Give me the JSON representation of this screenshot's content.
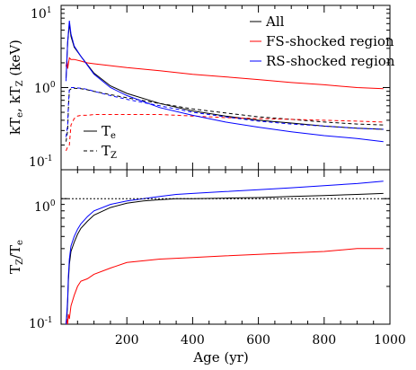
{
  "chart_data": [
    {
      "type": "line",
      "yscale": "log",
      "ylim": [
        0.1,
        10
      ],
      "xlim": [
        0,
        1000
      ],
      "ylabel": "kTe, kTZ (keV)",
      "legend_series": [
        {
          "key": "all",
          "name": "All",
          "color": "#000000"
        },
        {
          "key": "fs",
          "name": "FS-shocked region",
          "color": "#ff0000"
        },
        {
          "key": "rs",
          "name": "RS-shocked region",
          "color": "#0000ff"
        }
      ],
      "legend_styles": [
        {
          "key": "te",
          "name": "T",
          "sub": "e",
          "dash": "solid"
        },
        {
          "key": "tz",
          "name": "T",
          "sub": "Z",
          "dash": "dashed"
        }
      ],
      "series": [
        {
          "name": "All Te",
          "color": "#000000",
          "dash": "solid",
          "x": [
            15,
            20,
            25,
            30,
            40,
            60,
            100,
            150,
            200,
            300,
            400,
            500,
            600,
            700,
            800,
            900,
            980
          ],
          "y": [
            1.3,
            3.5,
            6.0,
            4.2,
            3.1,
            2.4,
            1.5,
            1.05,
            0.85,
            0.64,
            0.52,
            0.45,
            0.4,
            0.37,
            0.34,
            0.32,
            0.31
          ]
        },
        {
          "name": "All TZ",
          "color": "#000000",
          "dash": "dashed",
          "x": [
            15,
            20,
            22,
            25,
            30,
            40,
            60,
            80,
            100,
            150,
            200,
            300,
            400,
            500,
            600,
            700,
            800,
            900,
            980
          ],
          "y": [
            0.22,
            0.3,
            0.55,
            0.93,
            0.96,
            0.98,
            0.97,
            0.94,
            0.9,
            0.82,
            0.75,
            0.64,
            0.55,
            0.49,
            0.44,
            0.41,
            0.38,
            0.36,
            0.35
          ]
        },
        {
          "name": "FS Te",
          "color": "#ff0000",
          "dash": "solid",
          "x": [
            15,
            18,
            20,
            25,
            30,
            40,
            60,
            80,
            100,
            150,
            200,
            300,
            400,
            500,
            600,
            700,
            800,
            900,
            980
          ],
          "y": [
            1.8,
            2.1,
            1.7,
            2.3,
            2.2,
            2.2,
            2.1,
            2.0,
            1.95,
            1.85,
            1.75,
            1.6,
            1.45,
            1.35,
            1.25,
            1.15,
            1.08,
            1.0,
            0.97
          ]
        },
        {
          "name": "FS TZ",
          "color": "#ff0000",
          "dash": "dashed",
          "x": [
            15,
            20,
            25,
            30,
            40,
            50,
            60,
            80,
            100,
            150,
            200,
            300,
            400,
            500,
            600,
            700,
            800,
            900,
            980
          ],
          "y": [
            0.17,
            0.19,
            0.2,
            0.35,
            0.42,
            0.45,
            0.46,
            0.46,
            0.47,
            0.47,
            0.47,
            0.47,
            0.45,
            0.43,
            0.42,
            0.41,
            0.4,
            0.39,
            0.38
          ]
        },
        {
          "name": "RS Te",
          "color": "#0000ff",
          "dash": "solid",
          "x": [
            15,
            20,
            25,
            30,
            40,
            60,
            100,
            150,
            200,
            300,
            400,
            500,
            600,
            700,
            800,
            900,
            980
          ],
          "y": [
            1.2,
            3.6,
            6.5,
            4.5,
            3.2,
            2.4,
            1.45,
            1.0,
            0.8,
            0.57,
            0.46,
            0.38,
            0.33,
            0.29,
            0.26,
            0.24,
            0.22
          ]
        },
        {
          "name": "RS TZ",
          "color": "#0000ff",
          "dash": "dashed",
          "x": [
            15,
            20,
            22,
            25,
            30,
            40,
            60,
            80,
            100,
            150,
            200,
            300,
            400,
            500,
            600,
            700,
            800,
            900,
            980
          ],
          "y": [
            0.25,
            0.35,
            0.6,
            0.95,
            1.0,
            1.0,
            0.98,
            0.95,
            0.9,
            0.8,
            0.72,
            0.6,
            0.5,
            0.44,
            0.39,
            0.36,
            0.34,
            0.32,
            0.31
          ]
        }
      ]
    },
    {
      "type": "line",
      "yscale": "log",
      "ylim": [
        0.1,
        1.7
      ],
      "xlim": [
        0,
        1000
      ],
      "xlabel": "Age (yr)",
      "ylabel": "TZ/Te",
      "xticks": [
        200,
        400,
        600,
        800,
        1000
      ],
      "reference_line": {
        "y": 1,
        "dash": "dotted"
      },
      "series": [
        {
          "name": "All",
          "color": "#000000",
          "dash": "solid",
          "x": [
            15,
            18,
            20,
            22,
            25,
            30,
            40,
            50,
            60,
            80,
            100,
            150,
            200,
            250,
            300,
            350,
            400,
            500,
            600,
            700,
            800,
            900,
            980
          ],
          "y": [
            0.1,
            0.12,
            0.15,
            0.22,
            0.3,
            0.38,
            0.45,
            0.52,
            0.58,
            0.66,
            0.74,
            0.85,
            0.92,
            0.96,
            0.98,
            1.0,
            1.0,
            1.01,
            1.02,
            1.04,
            1.06,
            1.08,
            1.1
          ]
        },
        {
          "name": "FS",
          "color": "#ff0000",
          "dash": "solid",
          "x": [
            15,
            18,
            20,
            22,
            25,
            30,
            40,
            50,
            60,
            80,
            100,
            150,
            200,
            250,
            300,
            400,
            500,
            600,
            700,
            800,
            900,
            980
          ],
          "y": [
            0.1,
            0.11,
            0.1,
            0.12,
            0.11,
            0.14,
            0.17,
            0.2,
            0.22,
            0.23,
            0.25,
            0.28,
            0.31,
            0.32,
            0.33,
            0.34,
            0.35,
            0.36,
            0.37,
            0.38,
            0.4,
            0.4
          ]
        },
        {
          "name": "RS",
          "color": "#0000ff",
          "dash": "solid",
          "x": [
            15,
            18,
            20,
            22,
            25,
            30,
            40,
            50,
            60,
            80,
            100,
            150,
            200,
            250,
            300,
            350,
            400,
            500,
            600,
            700,
            800,
            900,
            980
          ],
          "y": [
            0.1,
            0.13,
            0.16,
            0.24,
            0.33,
            0.42,
            0.5,
            0.57,
            0.63,
            0.72,
            0.8,
            0.9,
            0.96,
            1.0,
            1.04,
            1.08,
            1.1,
            1.14,
            1.18,
            1.22,
            1.27,
            1.32,
            1.38
          ]
        }
      ]
    }
  ]
}
